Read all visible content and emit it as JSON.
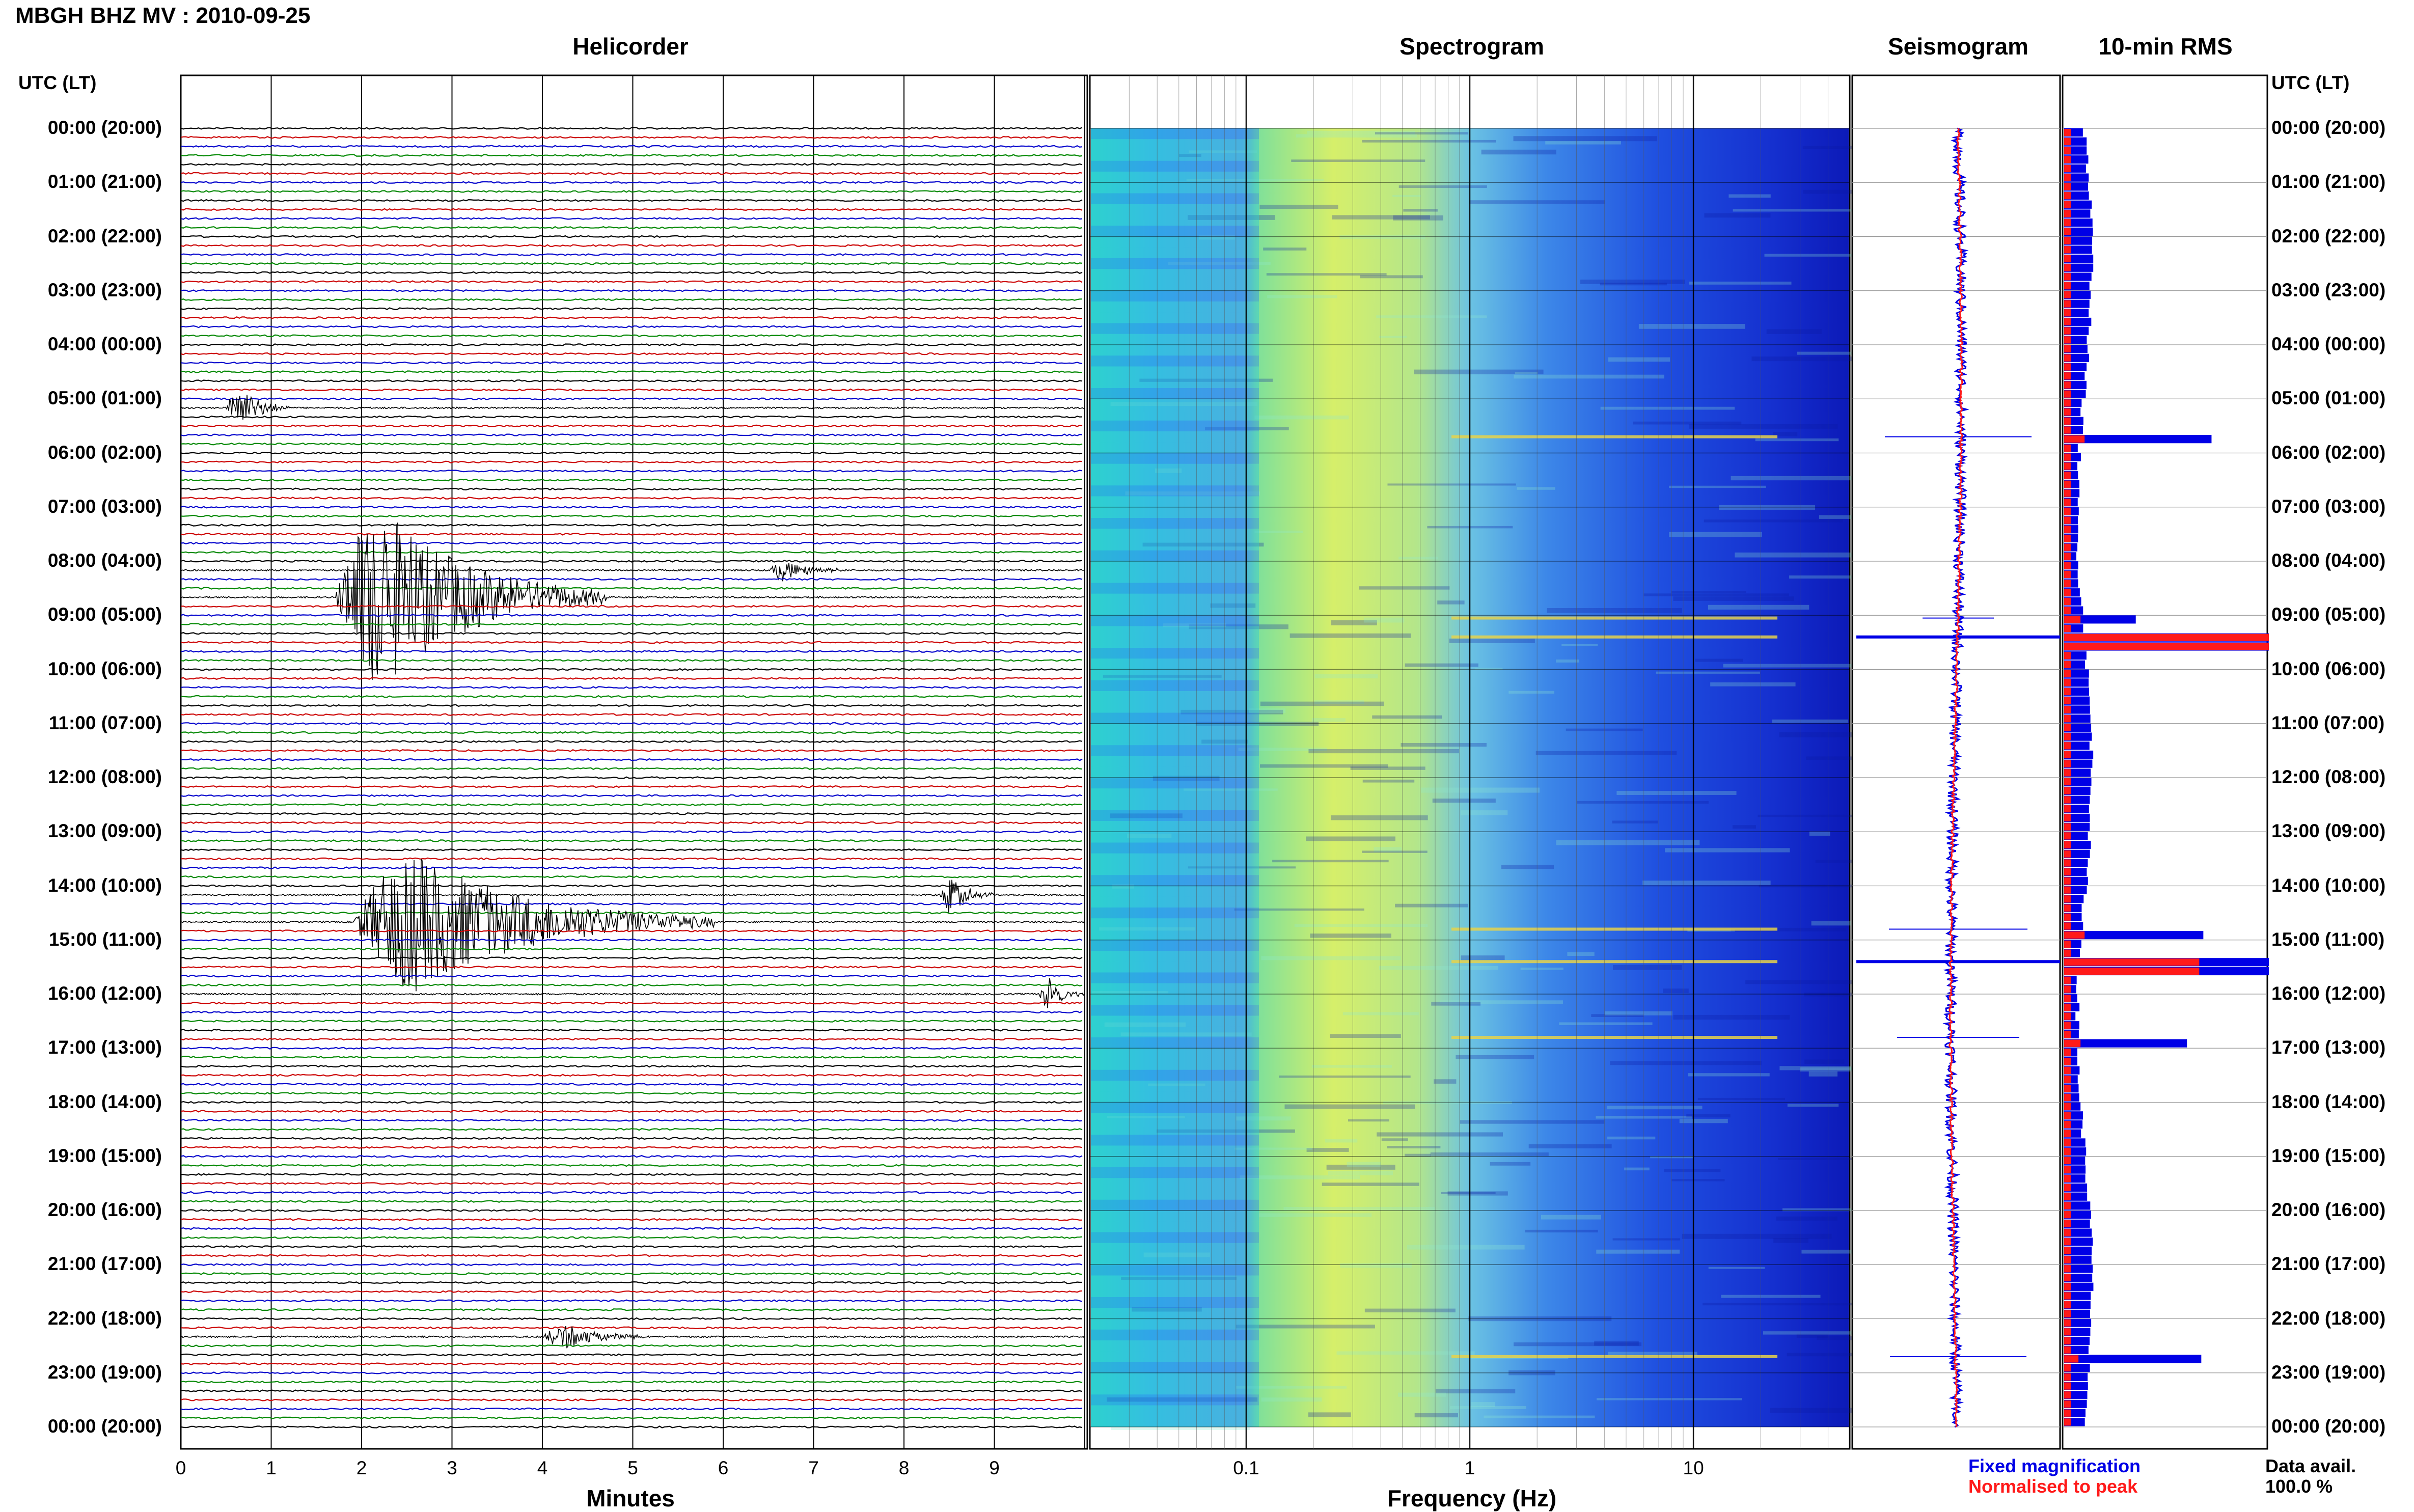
{
  "station_title": "MBGH BHZ MV : 2010-09-25",
  "panels": {
    "helicorder": "Helicorder",
    "spectrogram": "Spectrogram",
    "seismogram": "Seismogram",
    "rms": "10-min RMS"
  },
  "utc_header": "UTC (LT)",
  "time_labels": [
    "00:00 (20:00)",
    "01:00 (21:00)",
    "02:00 (22:00)",
    "03:00 (23:00)",
    "04:00 (00:00)",
    "05:00 (01:00)",
    "06:00 (02:00)",
    "07:00 (03:00)",
    "08:00 (04:00)",
    "09:00 (05:00)",
    "10:00 (06:00)",
    "11:00 (07:00)",
    "12:00 (08:00)",
    "13:00 (09:00)",
    "14:00 (10:00)",
    "15:00 (11:00)",
    "16:00 (12:00)",
    "17:00 (13:00)",
    "18:00 (14:00)",
    "19:00 (15:00)",
    "20:00 (16:00)",
    "21:00 (17:00)",
    "22:00 (18:00)",
    "23:00 (19:00)",
    "00:00 (20:00)"
  ],
  "minutes_axis": {
    "title": "Minutes",
    "ticks": [
      "0",
      "1",
      "2",
      "3",
      "4",
      "5",
      "6",
      "7",
      "8",
      "9"
    ]
  },
  "frequency_axis": {
    "title": "Frequency (Hz)",
    "ticks": [
      "0.1",
      "1",
      "10"
    ],
    "scale": "log"
  },
  "legend": {
    "fixed": "Fixed magnification",
    "normalised": "Normalised to peak"
  },
  "data_avail": {
    "label": "Data avail.",
    "value": "100.0 %"
  },
  "colors": {
    "trace_cycle": [
      "#000000",
      "#cc0000",
      "#0000cc",
      "#008800"
    ],
    "fixed": "#0000e6",
    "normalised": "#ff1a1a"
  },
  "chart_data": {
    "type": "line",
    "title": "MBGH BHZ MV : 2010-09-25",
    "helicorder_rows_per_hour": 6,
    "xlabel": "Minutes",
    "xlim": [
      0,
      10
    ],
    "events": [
      {
        "row": 31,
        "start_min": 0.5,
        "dur_min": 0.7,
        "amp": 3.2
      },
      {
        "row": 52,
        "start_min": 1.7,
        "dur_min": 3.0,
        "amp": 12
      },
      {
        "row": 49,
        "start_min": 6.5,
        "dur_min": 0.9,
        "amp": 1.4
      },
      {
        "row": 88,
        "start_min": 1.9,
        "dur_min": 4.0,
        "amp": 9
      },
      {
        "row": 85,
        "start_min": 8.4,
        "dur_min": 0.6,
        "amp": 2.6
      },
      {
        "row": 96,
        "start_min": 9.5,
        "dur_min": 0.5,
        "amp": 2.5
      },
      {
        "row": 134,
        "start_min": 4.0,
        "dur_min": 1.3,
        "amp": 1.6
      }
    ],
    "rms_peaks": [
      {
        "hour": 5.7,
        "fixed": 0.72,
        "norm": 0.1
      },
      {
        "hour": 9.05,
        "fixed": 0.35,
        "norm": 0.08
      },
      {
        "hour": 9.4,
        "fixed": 1.0,
        "norm": 1.0
      },
      {
        "hour": 14.8,
        "fixed": 0.68,
        "norm": 0.1
      },
      {
        "hour": 15.4,
        "fixed": 1.0,
        "norm": 0.66
      },
      {
        "hour": 16.8,
        "fixed": 0.6,
        "norm": 0.08
      },
      {
        "hour": 22.7,
        "fixed": 0.67,
        "norm": 0.07
      }
    ]
  }
}
